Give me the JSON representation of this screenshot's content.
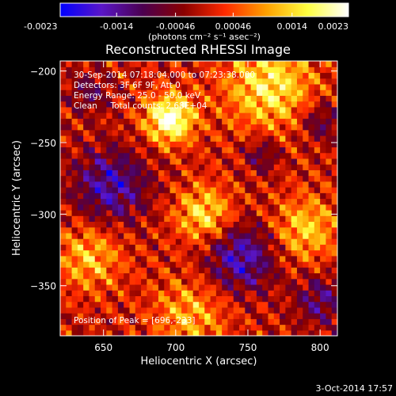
{
  "colorbar": {
    "tick_labels": [
      "-0.0023",
      "-0.0014",
      "-0.00046",
      "0.00046",
      "0.0014",
      "0.0023"
    ],
    "tick_values": [
      -0.0023,
      -0.0014,
      -0.00046,
      0.00046,
      0.0014,
      0.0023
    ],
    "range": [
      -0.0023,
      0.0023
    ],
    "units_label": "(photons cm⁻² s⁻¹ asec⁻²)",
    "colormap_stops": [
      "#0000ff",
      "#5a16c8",
      "#4b0050",
      "#8a0000",
      "#ff2a00",
      "#ffa000",
      "#ffff40",
      "#ffffff"
    ]
  },
  "chart_data": {
    "type": "heatmap",
    "title": "Reconstructed RHESSI Image",
    "xlabel": "Heliocentric X (arcsec)",
    "ylabel": "Heliocentric Y (arcsec)",
    "xlim": [
      620,
      812
    ],
    "ylim": [
      -385,
      -193
    ],
    "x_ticks": [
      650,
      700,
      750,
      800
    ],
    "x_tick_labels": [
      "650",
      "700",
      "750",
      "800"
    ],
    "y_ticks": [
      -200,
      -250,
      -300,
      -350
    ],
    "y_tick_labels": [
      "−200",
      "−250",
      "−300",
      "−350"
    ],
    "grid_cell_arcsec": 4,
    "peak_position": [
      696,
      -233
    ],
    "features": [
      {
        "kind": "bright-blob",
        "center": [
          696,
          -233
        ],
        "sigma": 12,
        "amplitude": 0.0023
      },
      {
        "kind": "bright-blob",
        "center": [
          765,
          -210
        ],
        "sigma": 22,
        "amplitude": 0.0016
      },
      {
        "kind": "bright-blob",
        "center": [
          720,
          -300
        ],
        "sigma": 14,
        "amplitude": 0.0015
      },
      {
        "kind": "bright-blob",
        "center": [
          640,
          -330
        ],
        "sigma": 16,
        "amplitude": 0.0012
      },
      {
        "kind": "bright-blob",
        "center": [
          790,
          -310
        ],
        "sigma": 16,
        "amplitude": 0.0013
      },
      {
        "kind": "bright-blob",
        "center": [
          710,
          -370
        ],
        "sigma": 18,
        "amplitude": 0.0011
      },
      {
        "kind": "dark-hole",
        "center": [
          655,
          -280
        ],
        "sigma": 18,
        "amplitude": -0.0015
      },
      {
        "kind": "dark-hole",
        "center": [
          745,
          -330
        ],
        "sigma": 17,
        "amplitude": -0.0016
      },
      {
        "kind": "dark-hole",
        "center": [
          760,
          -258
        ],
        "sigma": 9,
        "amplitude": -0.0009
      },
      {
        "kind": "dark-hole",
        "center": [
          800,
          -360
        ],
        "sigma": 12,
        "amplitude": -0.0011
      },
      {
        "kind": "dark-hole",
        "center": [
          640,
          -215
        ],
        "sigma": 10,
        "amplitude": -0.0008
      },
      {
        "kind": "dark-hole",
        "center": [
          800,
          -235
        ],
        "sigma": 10,
        "amplitude": -0.001
      }
    ]
  },
  "info": {
    "time_range": "30-Sep-2014 07:18:04.000 to 07:23:38.000",
    "detectors": "Detectors: 3F 6F 9F, Att 0",
    "energy_range": "Energy Range: 25.0 - 50.0 keV",
    "algorithm": "Clean     Total counts: 2.68E+04",
    "peak_text": "Position of Peak = [696,-233]"
  },
  "footer": {
    "date": "3-Oct-2014 17:57"
  }
}
